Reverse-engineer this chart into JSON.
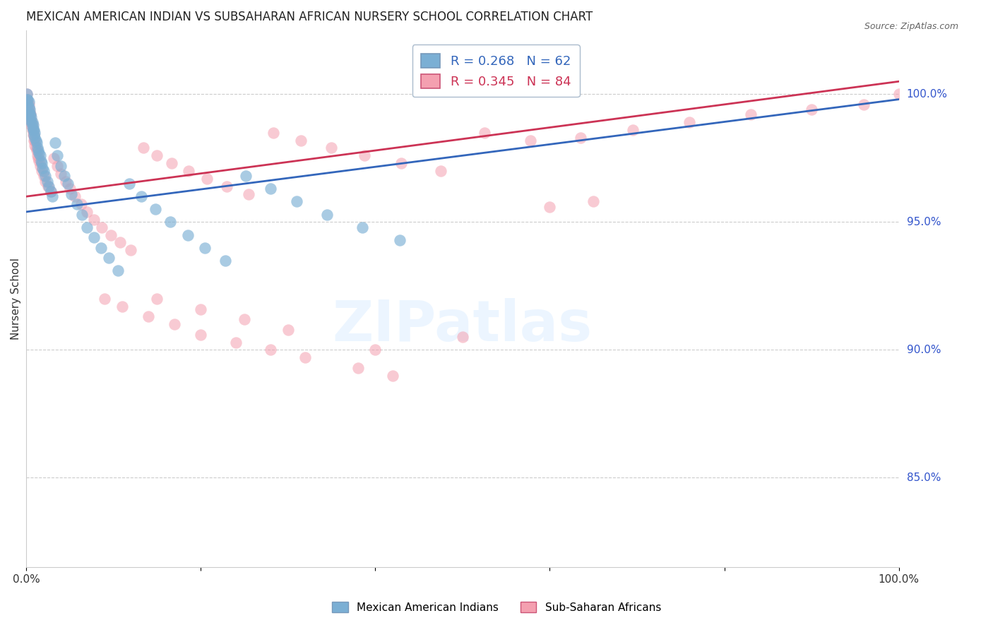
{
  "title": "MEXICAN AMERICAN INDIAN VS SUBSAHARAN AFRICAN NURSERY SCHOOL CORRELATION CHART",
  "source": "Source: ZipAtlas.com",
  "ylabel": "Nursery School",
  "ytick_labels": [
    "100.0%",
    "95.0%",
    "90.0%",
    "85.0%"
  ],
  "ytick_values": [
    1.0,
    0.95,
    0.9,
    0.85
  ],
  "xrange": [
    0.0,
    1.0
  ],
  "yrange": [
    0.815,
    1.025
  ],
  "legend_blue_label": "Mexican American Indians",
  "legend_pink_label": "Sub-Saharan Africans",
  "R_blue": 0.268,
  "N_blue": 62,
  "R_pink": 0.345,
  "N_pink": 84,
  "color_blue": "#7BAFD4",
  "color_pink": "#F4A0B0",
  "color_blue_line": "#3366BB",
  "color_pink_line": "#CC3355",
  "blue_trend_start_y": 0.954,
  "blue_trend_end_y": 0.998,
  "pink_trend_start_y": 0.96,
  "pink_trend_end_y": 1.005,
  "blue_x": [
    0.001,
    0.001,
    0.002,
    0.002,
    0.003,
    0.003,
    0.003,
    0.004,
    0.004,
    0.005,
    0.005,
    0.006,
    0.006,
    0.007,
    0.007,
    0.008,
    0.008,
    0.009,
    0.009,
    0.01,
    0.01,
    0.011,
    0.012,
    0.013,
    0.014,
    0.015,
    0.016,
    0.017,
    0.018,
    0.019,
    0.02,
    0.022,
    0.024,
    0.026,
    0.028,
    0.03,
    0.033,
    0.036,
    0.04,
    0.044,
    0.048,
    0.052,
    0.058,
    0.064,
    0.07,
    0.078,
    0.086,
    0.095,
    0.105,
    0.118,
    0.132,
    0.148,
    0.165,
    0.185,
    0.205,
    0.228,
    0.252,
    0.28,
    0.31,
    0.345,
    0.385,
    0.428
  ],
  "blue_y": [
    1.0,
    0.998,
    0.998,
    0.996,
    0.997,
    0.995,
    0.993,
    0.994,
    0.992,
    0.992,
    0.99,
    0.991,
    0.989,
    0.989,
    0.987,
    0.988,
    0.986,
    0.986,
    0.984,
    0.985,
    0.983,
    0.982,
    0.981,
    0.979,
    0.978,
    0.977,
    0.976,
    0.974,
    0.973,
    0.971,
    0.97,
    0.968,
    0.966,
    0.964,
    0.962,
    0.96,
    0.981,
    0.976,
    0.972,
    0.968,
    0.965,
    0.961,
    0.957,
    0.953,
    0.948,
    0.944,
    0.94,
    0.936,
    0.931,
    0.965,
    0.96,
    0.955,
    0.95,
    0.945,
    0.94,
    0.935,
    0.968,
    0.963,
    0.958,
    0.953,
    0.948,
    0.943
  ],
  "pink_x": [
    0.001,
    0.001,
    0.002,
    0.002,
    0.003,
    0.003,
    0.004,
    0.004,
    0.005,
    0.005,
    0.006,
    0.006,
    0.007,
    0.007,
    0.008,
    0.008,
    0.009,
    0.009,
    0.01,
    0.01,
    0.011,
    0.012,
    0.013,
    0.014,
    0.015,
    0.016,
    0.018,
    0.02,
    0.022,
    0.025,
    0.028,
    0.032,
    0.036,
    0.04,
    0.045,
    0.05,
    0.056,
    0.063,
    0.07,
    0.078,
    0.087,
    0.097,
    0.108,
    0.12,
    0.134,
    0.15,
    0.167,
    0.186,
    0.207,
    0.23,
    0.255,
    0.283,
    0.315,
    0.35,
    0.388,
    0.43,
    0.475,
    0.525,
    0.578,
    0.635,
    0.695,
    0.76,
    0.83,
    0.9,
    0.96,
    1.0,
    0.15,
    0.2,
    0.25,
    0.3,
    0.4,
    0.5,
    0.6,
    0.65,
    0.42,
    0.38,
    0.32,
    0.28,
    0.24,
    0.2,
    0.17,
    0.14,
    0.11,
    0.09
  ],
  "pink_y": [
    1.0,
    0.998,
    0.997,
    0.995,
    0.996,
    0.994,
    0.993,
    0.991,
    0.992,
    0.99,
    0.99,
    0.988,
    0.988,
    0.986,
    0.986,
    0.984,
    0.984,
    0.982,
    0.982,
    0.98,
    0.979,
    0.978,
    0.976,
    0.975,
    0.974,
    0.972,
    0.97,
    0.968,
    0.966,
    0.964,
    0.962,
    0.975,
    0.972,
    0.969,
    0.966,
    0.963,
    0.96,
    0.957,
    0.954,
    0.951,
    0.948,
    0.945,
    0.942,
    0.939,
    0.979,
    0.976,
    0.973,
    0.97,
    0.967,
    0.964,
    0.961,
    0.985,
    0.982,
    0.979,
    0.976,
    0.973,
    0.97,
    0.985,
    0.982,
    0.983,
    0.986,
    0.989,
    0.992,
    0.994,
    0.996,
    1.0,
    0.92,
    0.916,
    0.912,
    0.908,
    0.9,
    0.905,
    0.956,
    0.958,
    0.89,
    0.893,
    0.897,
    0.9,
    0.903,
    0.906,
    0.91,
    0.913,
    0.917,
    0.92
  ]
}
